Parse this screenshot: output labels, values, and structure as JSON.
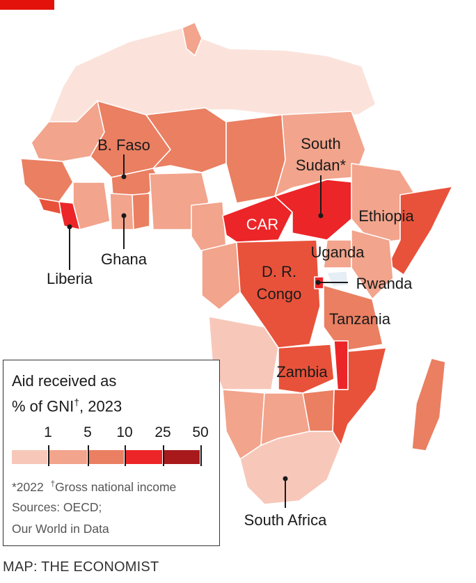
{
  "legend": {
    "title_line1": "Aid received as",
    "title_line2_prefix": "% of GNI",
    "title_line2_sup": "†",
    "title_line2_suffix": ", 2023",
    "ticks": [
      "1",
      "5",
      "10",
      "25",
      "50"
    ],
    "footnote_star": "*2022",
    "footnote_dagger_mark": "†",
    "footnote_dagger": "Gross national income",
    "sources_line1": "Sources: OECD;",
    "sources_line2": "Our World in Data"
  },
  "colors": {
    "bin_lt1": "#f7c8ba",
    "bin_1_5": "#f2a48c",
    "bin_5_10": "#ea7f62",
    "bin_10_25": "#e8523a",
    "bin_25_50": "#ec2528",
    "bin_gt50": "#a8191b",
    "no_data": "#fbe3dc",
    "accent": "#e3120b"
  },
  "labels": {
    "b_faso": "B. Faso",
    "south_sudan_line1": "South",
    "south_sudan_line2": "Sudan*",
    "car": "CAR",
    "ethiopia": "Ethiopia",
    "uganda": "Uganda",
    "drc_line1": "D. R.",
    "drc_line2": "Congo",
    "rwanda": "Rwanda",
    "tanzania": "Tanzania",
    "zambia": "Zambia",
    "ghana": "Ghana",
    "liberia": "Liberia",
    "south_africa": "South Africa"
  },
  "credit": "MAP: THE ECONOMIST"
}
